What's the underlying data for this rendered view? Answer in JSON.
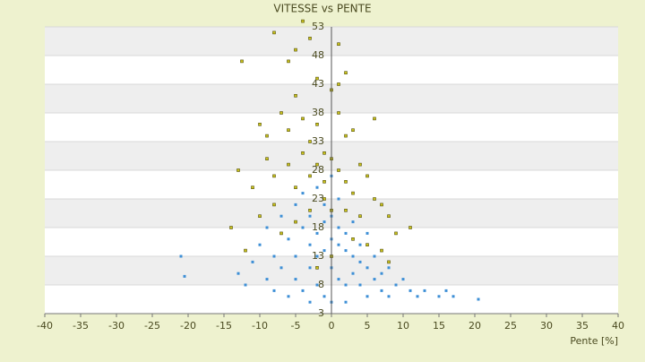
{
  "chart_data": {
    "type": "scatter",
    "title": "VITESSE vs PENTE",
    "x_label": "Pente [%]",
    "xlim": [
      -40,
      40
    ],
    "xticks": [
      -40,
      -35,
      -30,
      -25,
      -20,
      -15,
      -10,
      -5,
      0,
      5,
      10,
      15,
      20,
      25,
      30,
      35,
      40
    ],
    "ylim": [
      3,
      53
    ],
    "yticks": [
      3,
      8,
      13,
      18,
      23,
      28,
      33,
      38,
      43,
      48,
      53
    ],
    "grid": true,
    "series": [
      {
        "color": "#3d8fd6",
        "x": [
          -21,
          -20.5,
          -13,
          -12,
          -11,
          -10,
          -9,
          -9,
          -8,
          -8,
          -7,
          -7,
          -6,
          -6,
          -5,
          -5,
          -5,
          -4,
          -4,
          -4,
          -3,
          -3,
          -3,
          -3,
          -2,
          -2,
          -2,
          -2,
          -1,
          -1,
          -1,
          -1,
          0,
          0,
          0,
          0,
          0,
          1,
          1,
          1,
          1,
          2,
          2,
          2,
          2,
          3,
          3,
          3,
          4,
          4,
          4,
          5,
          5,
          5,
          6,
          6,
          7,
          7,
          8,
          8,
          9,
          10,
          11,
          12,
          13,
          15,
          16,
          17,
          20.5
        ],
        "values": [
          13,
          9.5,
          10,
          8,
          12,
          15,
          18,
          9,
          13,
          7,
          20,
          11,
          16,
          6,
          22,
          13,
          9,
          18,
          24,
          7,
          15,
          20,
          11,
          5,
          17,
          25,
          13,
          8,
          19,
          14,
          22,
          6,
          16,
          20,
          11,
          27,
          5,
          15,
          18,
          9,
          23,
          14,
          17,
          8,
          5,
          13,
          19,
          10,
          15,
          8,
          12,
          11,
          17,
          6,
          13,
          9,
          10,
          7,
          11,
          6,
          8,
          9,
          7,
          6,
          7,
          6,
          7,
          6,
          5.5
        ]
      },
      {
        "color": "#c9c21a",
        "x": [
          -12.5,
          -8,
          -6,
          -5,
          -4,
          -3,
          1,
          2,
          -5,
          -2,
          0,
          1,
          -10,
          -9,
          -7,
          -6,
          -4,
          -3,
          -2,
          -1,
          1,
          2,
          3,
          6,
          -13,
          -11,
          -9,
          -8,
          -6,
          -5,
          -4,
          -3,
          -2,
          -1,
          0,
          1,
          2,
          3,
          4,
          5,
          6,
          7,
          8,
          9,
          11,
          -14,
          -12,
          -10,
          -8,
          -7,
          -5,
          -3,
          -1,
          0,
          2,
          4,
          5,
          7,
          8,
          -2,
          0,
          3
        ],
        "values": [
          47,
          52,
          47,
          49,
          54,
          51,
          50,
          45,
          41,
          44,
          42,
          43,
          36,
          34,
          38,
          35,
          37,
          33,
          36,
          31,
          38,
          34,
          35,
          37,
          28,
          25,
          30,
          27,
          29,
          25,
          31,
          27,
          29,
          26,
          30,
          28,
          26,
          24,
          29,
          27,
          23,
          22,
          20,
          17,
          18,
          18,
          14,
          20,
          22,
          17,
          19,
          21,
          23,
          21,
          21,
          20,
          15,
          14,
          12,
          11,
          13,
          16
        ]
      }
    ]
  }
}
